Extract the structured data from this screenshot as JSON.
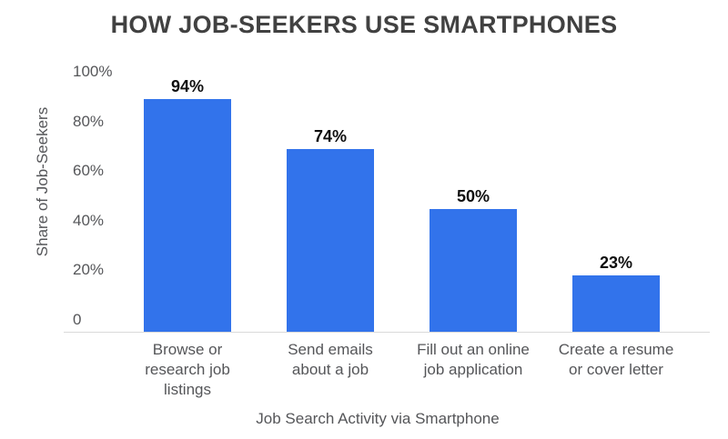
{
  "chart_data": {
    "type": "bar",
    "title": "HOW JOB-SEEKERS USE SMARTPHONES",
    "xlabel": "Job Search Activity via Smartphone",
    "ylabel": "Share of Job-Seekers",
    "categories": [
      {
        "label": "Browse or research job listings",
        "lines": [
          "Browse or",
          "research job",
          "listings"
        ]
      },
      {
        "label": "Send emails about a job",
        "lines": [
          "Send emails",
          "about a job"
        ]
      },
      {
        "label": "Fill out an online job application",
        "lines": [
          "Fill out an online",
          "job application"
        ]
      },
      {
        "label": "Create a resume or cover letter",
        "lines": [
          "Create a resume",
          "or cover letter"
        ]
      }
    ],
    "values": [
      94,
      74,
      50,
      23
    ],
    "bar_labels": [
      "94%",
      "74%",
      "50%",
      "23%"
    ],
    "yticks": [
      {
        "value": 0,
        "label": "0"
      },
      {
        "value": 20,
        "label": "20%"
      },
      {
        "value": 40,
        "label": "40%"
      },
      {
        "value": 60,
        "label": "60%"
      },
      {
        "value": 80,
        "label": "80%"
      },
      {
        "value": 100,
        "label": "100%"
      }
    ],
    "ylim": [
      0,
      100
    ],
    "grid": false,
    "legend": null,
    "colors": {
      "bar": "#3273EB",
      "title_text": "#414141",
      "axis_text": "#555659",
      "bar_label_text": "#101010",
      "axis_line": "#DADADA",
      "background": "#FFFFFF"
    }
  }
}
